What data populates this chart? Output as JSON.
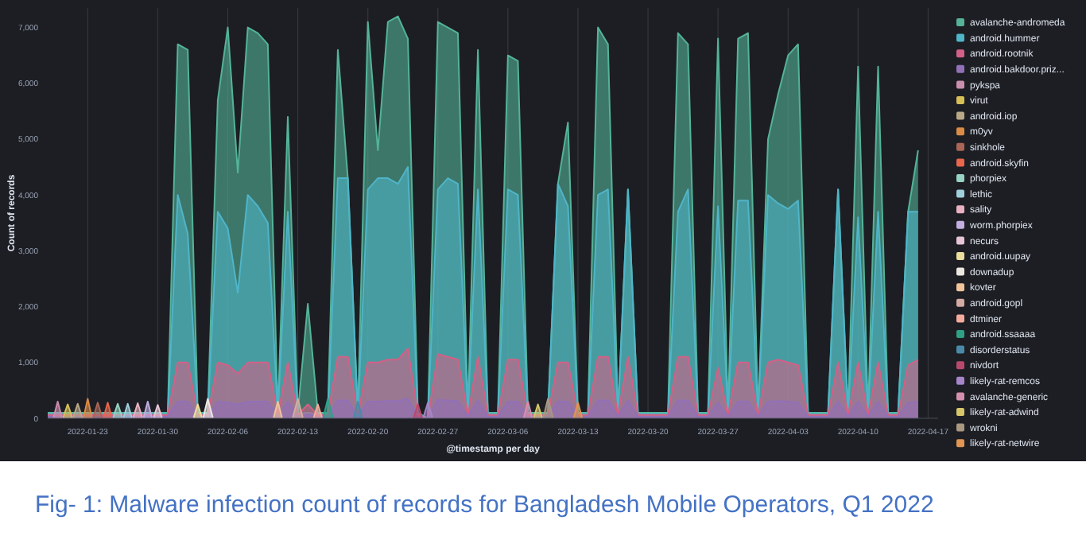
{
  "chart_data": {
    "type": "area",
    "xlabel": "@timestamp per day",
    "ylabel": "Count of records",
    "annotations": [
      "Fig- 1: Malware infection count of records for Bangladesh Mobile Operators, Q1 2022"
    ],
    "x": [
      "2022-01-19",
      "2022-01-31",
      "2022-02-01",
      "2022-02-02",
      "2022-02-03",
      "2022-02-04",
      "2022-02-05",
      "2022-02-06",
      "2022-02-07",
      "2022-02-08",
      "2022-02-09",
      "2022-02-10",
      "2022-02-11",
      "2022-02-12",
      "2022-02-13",
      "2022-02-14",
      "2022-02-15",
      "2022-02-16",
      "2022-02-17",
      "2022-02-18",
      "2022-02-19",
      "2022-02-20",
      "2022-02-21",
      "2022-02-22",
      "2022-02-23",
      "2022-02-24",
      "2022-02-25",
      "2022-02-26",
      "2022-02-27",
      "2022-02-28",
      "2022-03-01",
      "2022-03-02",
      "2022-03-03",
      "2022-03-04",
      "2022-03-05",
      "2022-03-06",
      "2022-03-07",
      "2022-03-08",
      "2022-03-10",
      "2022-03-11",
      "2022-03-12",
      "2022-03-13",
      "2022-03-14",
      "2022-03-15",
      "2022-03-16",
      "2022-03-17",
      "2022-03-18",
      "2022-03-19",
      "2022-03-22",
      "2022-03-23",
      "2022-03-24",
      "2022-03-25",
      "2022-03-26",
      "2022-03-27",
      "2022-03-28",
      "2022-03-29",
      "2022-03-30",
      "2022-03-31",
      "2022-04-01",
      "2022-04-02",
      "2022-04-03",
      "2022-04-04",
      "2022-04-05",
      "2022-04-07",
      "2022-04-08",
      "2022-04-09",
      "2022-04-10",
      "2022-04-11",
      "2022-04-12",
      "2022-04-13",
      "2022-04-14",
      "2022-04-15",
      "2022-04-16"
    ],
    "series": [
      {
        "name": "avalanche-andromeda",
        "color": "#54b399",
        "values": [
          100,
          100,
          6700,
          6600,
          100,
          100,
          5700,
          7000,
          4400,
          7000,
          6900,
          6700,
          100,
          5400,
          100,
          2050,
          100,
          100,
          6600,
          4300,
          100,
          7100,
          4800,
          7100,
          7200,
          6800,
          100,
          0,
          7100,
          7000,
          6900,
          100,
          6600,
          100,
          100,
          6500,
          6400,
          100,
          100,
          4200,
          5300,
          100,
          100,
          7000,
          6700,
          100,
          4100,
          100,
          100,
          6900,
          6700,
          100,
          100,
          6800,
          100,
          6800,
          6900,
          100,
          5000,
          5800,
          6500,
          6700,
          100,
          100,
          4100,
          100,
          6300,
          100,
          6300,
          100,
          100,
          3700,
          4800
        ]
      },
      {
        "name": "android.hummer",
        "color": "#4fb5c8",
        "values": [
          80,
          80,
          4000,
          3300,
          80,
          80,
          3700,
          3400,
          2250,
          4000,
          3800,
          3500,
          80,
          3700,
          80,
          100,
          80,
          80,
          4300,
          4300,
          80,
          4100,
          4300,
          4300,
          4200,
          4500,
          80,
          0,
          4100,
          4300,
          4200,
          80,
          4100,
          80,
          80,
          4100,
          4000,
          80,
          80,
          4200,
          3800,
          80,
          80,
          4000,
          4100,
          80,
          4100,
          80,
          80,
          3700,
          4100,
          80,
          80,
          3800,
          80,
          3900,
          3900,
          80,
          4000,
          3850,
          3750,
          3900,
          80,
          80,
          4100,
          80,
          3600,
          80,
          3700,
          80,
          80,
          3700,
          3700
        ]
      },
      {
        "name": "android.rootnik",
        "color": "#d36086",
        "values": [
          60,
          60,
          1000,
          1000,
          60,
          60,
          1000,
          950,
          800,
          1000,
          1000,
          1000,
          60,
          1000,
          60,
          250,
          60,
          60,
          1100,
          1100,
          60,
          1000,
          1000,
          1050,
          1050,
          1250,
          60,
          0,
          1150,
          1100,
          1050,
          60,
          1100,
          60,
          60,
          1050,
          1050,
          60,
          60,
          1000,
          1000,
          60,
          60,
          1100,
          1100,
          60,
          1100,
          60,
          60,
          1100,
          1100,
          60,
          60,
          900,
          60,
          1000,
          1000,
          60,
          1000,
          1050,
          1000,
          950,
          60,
          60,
          1000,
          60,
          1000,
          60,
          1000,
          60,
          60,
          950,
          1050
        ]
      },
      {
        "name": "android.bakdoor.priz...",
        "color": "#9170b8",
        "values": [
          30,
          30,
          300,
          300,
          30,
          30,
          300,
          280,
          250,
          300,
          300,
          300,
          30,
          300,
          30,
          80,
          30,
          30,
          320,
          320,
          30,
          300,
          300,
          310,
          310,
          350,
          30,
          0,
          330,
          320,
          310,
          30,
          320,
          30,
          30,
          300,
          300,
          30,
          30,
          300,
          300,
          30,
          30,
          320,
          320,
          30,
          320,
          30,
          30,
          320,
          320,
          30,
          30,
          280,
          30,
          300,
          300,
          30,
          300,
          310,
          300,
          280,
          30,
          30,
          300,
          30,
          300,
          30,
          300,
          30,
          30,
          280,
          300
        ]
      },
      {
        "name": "pykspa",
        "color": "#ca8eae",
        "x": [
          "2022-01-19T14:00",
          "2022-01-20",
          "2022-01-20T10:00"
        ],
        "values": [
          10,
          300,
          10
        ]
      },
      {
        "name": "virut",
        "color": "#d6bf57",
        "x": [
          "2022-01-20T13:00",
          "2022-01-21",
          "2022-01-21T11:00"
        ],
        "values": [
          10,
          250,
          10
        ]
      },
      {
        "name": "android.iop",
        "color": "#b9a888",
        "x": [
          "2022-01-21T13:00",
          "2022-01-22",
          "2022-01-22T11:00"
        ],
        "values": [
          10,
          260,
          10
        ]
      },
      {
        "name": "m0yv",
        "color": "#da8b45",
        "x": [
          "2022-01-22T14:00",
          "2022-01-23",
          "2022-01-23T10:00"
        ],
        "values": [
          10,
          350,
          10
        ]
      },
      {
        "name": "sinkhole",
        "color": "#aa6556",
        "x": [
          "2022-01-23T13:00",
          "2022-01-24",
          "2022-01-24T11:00"
        ],
        "values": [
          10,
          280,
          10
        ]
      },
      {
        "name": "android.skyfin",
        "color": "#e7664c",
        "x": [
          "2022-01-24T14:00",
          "2022-01-25",
          "2022-01-25T10:00"
        ],
        "values": [
          10,
          280,
          10
        ]
      },
      {
        "name": "phorpiex",
        "color": "#98d2c2",
        "x": [
          "2022-01-25T13:00",
          "2022-01-26",
          "2022-01-26T11:00"
        ],
        "values": [
          10,
          260,
          10
        ]
      },
      {
        "name": "lethic",
        "color": "#a0cfdc",
        "x": [
          "2022-01-26T14:00",
          "2022-01-27",
          "2022-01-27T10:00"
        ],
        "values": [
          10,
          260,
          10
        ]
      },
      {
        "name": "sality",
        "color": "#e8b1c2",
        "x": [
          "2022-01-27T13:00",
          "2022-01-28",
          "2022-01-28T11:00"
        ],
        "values": [
          10,
          270,
          10
        ]
      },
      {
        "name": "worm.phorpiex",
        "color": "#c2aee0",
        "x": [
          "2022-01-28T14:00",
          "2022-01-29",
          "2022-01-29T10:00"
        ],
        "values": [
          10,
          300,
          10
        ]
      },
      {
        "name": "necurs",
        "color": "#e6c5d6",
        "x": [
          "2022-01-29T14:00",
          "2022-01-30",
          "2022-01-30T10:00"
        ],
        "values": [
          10,
          240,
          10
        ]
      },
      {
        "name": "android.uupay",
        "color": "#ecdf9e",
        "x": [
          "2022-02-02T14:00",
          "2022-02-03",
          "2022-02-03T10:00"
        ],
        "values": [
          10,
          250,
          10
        ]
      },
      {
        "name": "downadup",
        "color": "#ece8e0",
        "x": [
          "2022-02-03T13:00",
          "2022-02-04",
          "2022-02-04T12:00"
        ],
        "values": [
          10,
          350,
          10
        ]
      },
      {
        "name": "kovter",
        "color": "#f0c39b",
        "x": [
          "2022-02-10T14:00",
          "2022-02-11",
          "2022-02-11T10:00"
        ],
        "values": [
          10,
          300,
          10
        ]
      },
      {
        "name": "android.gopl",
        "color": "#d4aba2",
        "x": [
          "2022-02-12T12:00",
          "2022-02-13",
          "2022-02-13T12:00"
        ],
        "values": [
          10,
          350,
          10
        ]
      },
      {
        "name": "dtminer",
        "color": "#f5ab9c",
        "x": [
          "2022-02-14T14:00",
          "2022-02-15",
          "2022-02-15T10:00"
        ],
        "values": [
          10,
          250,
          10
        ]
      },
      {
        "name": "android.ssaaaa",
        "color": "#2fa085",
        "x": [
          "2022-02-15T13:00",
          "2022-02-16",
          "2022-02-16T12:00"
        ],
        "values": [
          10,
          350,
          10
        ]
      },
      {
        "name": "disorderstatus",
        "color": "#4a8aa8",
        "x": [
          "2022-02-18T14:00",
          "2022-02-19",
          "2022-02-19T10:00"
        ],
        "values": [
          10,
          300,
          10
        ]
      },
      {
        "name": "nivdort",
        "color": "#b8496d",
        "x": [
          "2022-02-24T14:00",
          "2022-02-25",
          "2022-02-25T10:00"
        ],
        "values": [
          10,
          250,
          10
        ]
      },
      {
        "name": "likely-rat-remcos",
        "color": "#a685c8",
        "x": [
          "2022-02-25T13:00",
          "2022-02-26",
          "2022-02-26T11:00"
        ],
        "values": [
          10,
          280,
          10
        ]
      },
      {
        "name": "avalanche-generic",
        "color": "#d58fae",
        "x": [
          "2022-03-07T14:00",
          "2022-03-08",
          "2022-03-08T10:00"
        ],
        "values": [
          10,
          300,
          10
        ]
      },
      {
        "name": "likely-rat-adwind",
        "color": "#d6c66a",
        "x": [
          "2022-03-08T14:00",
          "2022-03-09",
          "2022-03-09T10:00"
        ],
        "values": [
          10,
          250,
          10
        ]
      },
      {
        "name": "wrokni",
        "color": "#a89880",
        "x": [
          "2022-03-09T13:00",
          "2022-03-10",
          "2022-03-10T12:00"
        ],
        "values": [
          10,
          350,
          10
        ]
      },
      {
        "name": "likely-rat-netwire",
        "color": "#e09552",
        "x": [
          "2022-03-12T14:00",
          "2022-03-13",
          "2022-03-13T10:00"
        ],
        "values": [
          10,
          280,
          10
        ]
      }
    ],
    "xlim": [
      "2022-01-19",
      "2022-04-18"
    ],
    "xticks": [
      "2022-01-23",
      "2022-01-30",
      "2022-02-06",
      "2022-02-13",
      "2022-02-20",
      "2022-02-27",
      "2022-03-06",
      "2022-03-13",
      "2022-03-20",
      "2022-03-27",
      "2022-04-03",
      "2022-04-10",
      "2022-04-17"
    ],
    "ylim": [
      0,
      7350
    ],
    "yticks": [
      0,
      {
        "value": 1000,
        "label": "1,000"
      },
      {
        "value": 2000,
        "label": "2,000"
      },
      {
        "value": 3000,
        "label": "3,000"
      },
      {
        "value": 4000,
        "label": "4,000"
      },
      {
        "value": 5000,
        "label": "5,000"
      },
      {
        "value": 6000,
        "label": "6,000"
      },
      {
        "value": 7000,
        "label": "7,000"
      }
    ],
    "grid": "x",
    "legend": "right"
  }
}
